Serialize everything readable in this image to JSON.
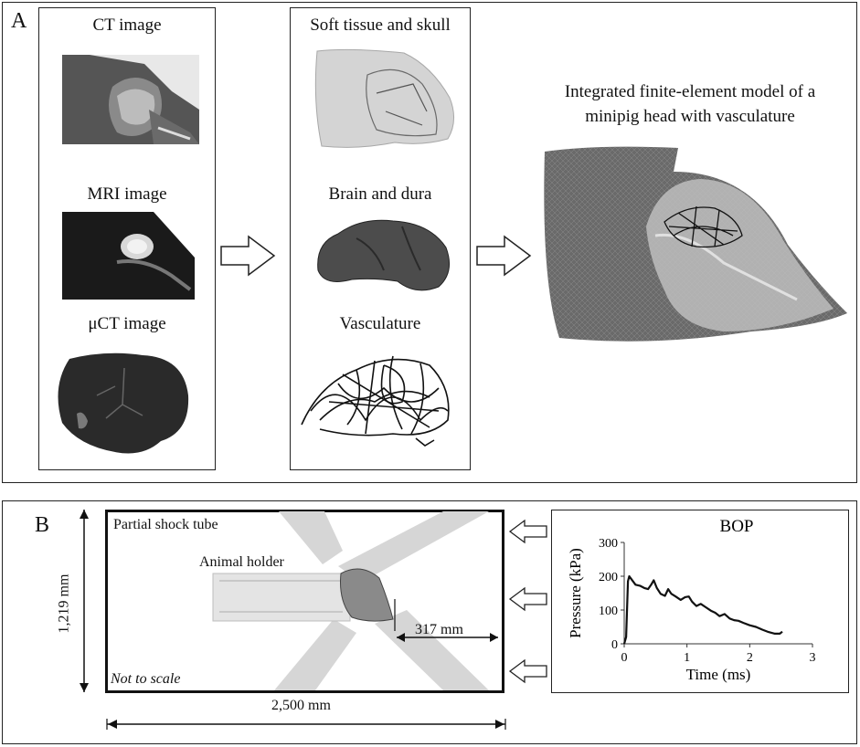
{
  "panel_a": {
    "letter": "A",
    "imaging": {
      "ct_label": "CT image",
      "mri_label": "MRI image",
      "uct_label": "μCT image"
    },
    "components": {
      "soft_tissue_label": "Soft tissue and skull",
      "brain_label": "Brain and dura",
      "vasculature_label": "Vasculature"
    },
    "model": {
      "title_line1": "Integrated finite-element model of a",
      "title_line2": "minipig head with vasculature"
    }
  },
  "panel_b": {
    "letter": "B",
    "tube_label": "Partial shock tube",
    "holder_label": "Animal holder",
    "distance_label": "317 mm",
    "note": "Not to scale",
    "height_label": "1,219 mm",
    "width_label": "2,500 mm"
  },
  "chart_data": {
    "type": "line",
    "title": "BOP",
    "xlabel": "Time (ms)",
    "ylabel": "Pressure (kPa)",
    "xlim": [
      0,
      3
    ],
    "ylim": [
      0,
      300
    ],
    "xticks": [
      0,
      1,
      2,
      3
    ],
    "yticks": [
      0,
      100,
      200,
      300
    ],
    "grid": false,
    "series": [
      {
        "x": [
          0.0,
          0.03,
          0.06,
          0.08,
          0.12,
          0.18,
          0.25,
          0.32,
          0.38,
          0.43,
          0.47,
          0.52,
          0.58,
          0.65,
          0.7,
          0.75,
          0.82,
          0.9,
          0.97,
          1.03,
          1.08,
          1.15,
          1.22,
          1.3,
          1.38,
          1.45,
          1.52,
          1.6,
          1.68,
          1.75,
          1.82,
          1.9,
          2.0,
          2.1,
          2.2,
          2.3,
          2.4,
          2.48,
          2.52
        ],
        "y": [
          0,
          20,
          185,
          200,
          190,
          175,
          172,
          165,
          162,
          175,
          188,
          165,
          148,
          142,
          162,
          148,
          140,
          130,
          138,
          140,
          125,
          112,
          118,
          108,
          98,
          92,
          82,
          88,
          75,
          70,
          68,
          62,
          55,
          50,
          42,
          35,
          30,
          30,
          36
        ]
      }
    ]
  }
}
